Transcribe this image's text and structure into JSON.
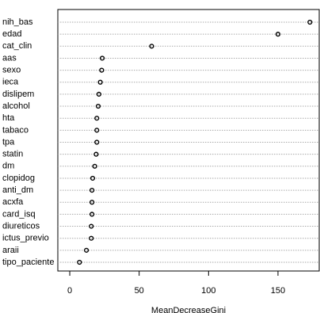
{
  "chart_data": {
    "type": "dotchart",
    "x_label": "MeanDecreaseGini",
    "categories": [
      "nih_bas",
      "edad",
      "cat_clin",
      "aas",
      "sexo",
      "ieca",
      "dislipem",
      "alcohol",
      "hta",
      "tabaco",
      "tpa",
      "statin",
      "dm",
      "clopidog",
      "anti_dm",
      "acxfa",
      "card_isq",
      "diureticos",
      "ictus_previo",
      "araii",
      "tipo_paciente"
    ],
    "values": [
      173,
      150,
      59,
      23.4,
      23,
      22,
      21,
      20.5,
      19.5,
      19.5,
      19.5,
      19,
      18,
      16.5,
      16,
      16,
      16,
      15.5,
      15.5,
      12,
      7
    ],
    "color": "#000000",
    "xlim": [
      -8.6,
      179.7
    ],
    "xticks": [
      0,
      50,
      100,
      150
    ],
    "grid": true
  }
}
